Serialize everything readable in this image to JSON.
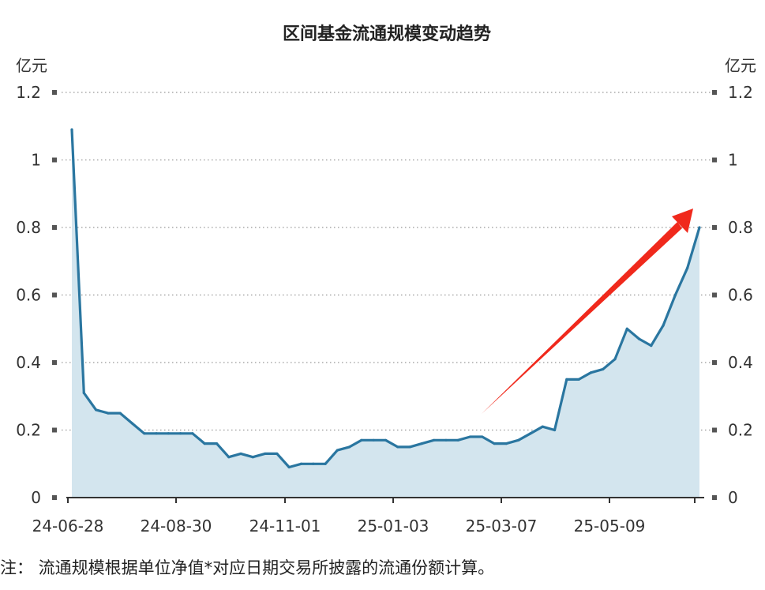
{
  "chart_data": {
    "type": "area",
    "title": "区间基金流通规模变动趋势",
    "ylabel": "亿元",
    "ylabel_right": "亿元",
    "ylim": [
      0,
      1.2
    ],
    "yticks": [
      "0",
      "0.2",
      "0.4",
      "0.6",
      "0.8",
      "1",
      "1.2"
    ],
    "x_tick_labels": [
      "24-06-28",
      "24-08-30",
      "24-11-01",
      "25-01-03",
      "25-03-07",
      "25-05-09"
    ],
    "grid": "horizontal-dotted",
    "series": [
      {
        "values": [
          1.09,
          0.31,
          0.26,
          0.25,
          0.25,
          0.22,
          0.19,
          0.19,
          0.19,
          0.19,
          0.19,
          0.16,
          0.16,
          0.12,
          0.13,
          0.12,
          0.13,
          0.13,
          0.09,
          0.1,
          0.1,
          0.1,
          0.14,
          0.15,
          0.17,
          0.17,
          0.17,
          0.15,
          0.15,
          0.16,
          0.17,
          0.17,
          0.17,
          0.18,
          0.18,
          0.16,
          0.16,
          0.17,
          0.19,
          0.21,
          0.2,
          0.35,
          0.35,
          0.37,
          0.38,
          0.41,
          0.5,
          0.47,
          0.45,
          0.51,
          0.6,
          0.68,
          0.8
        ]
      }
    ],
    "annotations": [
      {
        "type": "arrow",
        "direction": "up-right",
        "color": "#f0291c"
      }
    ],
    "colors": {
      "line": "#2a76a0",
      "area": "#d3e5ee",
      "grid": "#999999",
      "arrow": "#f0291c"
    }
  },
  "note": "注：  流通规模根据单位净值*对应日期交易所披露的流通份额计算。"
}
